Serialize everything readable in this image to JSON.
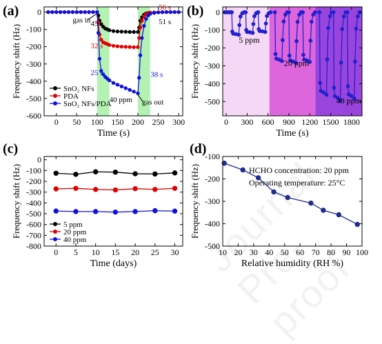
{
  "watermark": "Journal Pre-proof",
  "chart_data": [
    {
      "panel": "(a)",
      "type": "line",
      "xlabel": "Time (s)",
      "ylabel": "Frequency shift (Hz)",
      "xlim": [
        -30,
        310
      ],
      "ylim": [
        -600,
        30
      ],
      "xticks": [
        0,
        50,
        100,
        150,
        200,
        250,
        300
      ],
      "yticks": [
        0,
        -100,
        -200,
        -300,
        -400,
        -500,
        -600
      ],
      "shaded_intervals": [
        [
          100,
          130
        ],
        [
          200,
          230
        ]
      ],
      "shade_color": "#99ee99",
      "series": [
        {
          "name": "SnO₂ NFs",
          "color": "#000000",
          "x": [
            -20,
            -10,
            0,
            10,
            20,
            30,
            40,
            50,
            60,
            70,
            80,
            90,
            100,
            103,
            106,
            110,
            115,
            120,
            125,
            130,
            140,
            150,
            160,
            170,
            180,
            190,
            200,
            203,
            206,
            210,
            215,
            220,
            225,
            230,
            240,
            250,
            260,
            270,
            280,
            290,
            300
          ],
          "y": [
            0,
            0,
            0,
            0,
            0,
            0,
            0,
            0,
            0,
            0,
            0,
            0,
            0,
            -20,
            -50,
            -70,
            -85,
            -95,
            -100,
            -105,
            -110,
            -112,
            -113,
            -114,
            -115,
            -115,
            -115,
            -90,
            -50,
            -30,
            -15,
            -8,
            -5,
            -3,
            -2,
            -1,
            0,
            0,
            0,
            0,
            0
          ]
        },
        {
          "name": "PDA",
          "color": "#e00000",
          "x": [
            -20,
            -10,
            0,
            10,
            20,
            30,
            40,
            50,
            60,
            70,
            80,
            90,
            100,
            103,
            106,
            110,
            115,
            120,
            125,
            130,
            140,
            150,
            160,
            170,
            180,
            190,
            200,
            203,
            206,
            210,
            215,
            220,
            225,
            230,
            240,
            250,
            260,
            270,
            280,
            290,
            300
          ],
          "y": [
            0,
            0,
            0,
            0,
            0,
            0,
            0,
            0,
            0,
            0,
            0,
            0,
            0,
            -60,
            -130,
            -160,
            -175,
            -180,
            -185,
            -190,
            -195,
            -198,
            -200,
            -201,
            -202,
            -203,
            -203,
            -150,
            -90,
            -50,
            -25,
            -12,
            -6,
            -3,
            -2,
            -1,
            0,
            0,
            0,
            0,
            0
          ]
        },
        {
          "name": "SnO₂ NFs/PDA",
          "color": "#1010e0",
          "x": [
            -20,
            -10,
            0,
            10,
            20,
            30,
            40,
            50,
            60,
            70,
            80,
            90,
            100,
            103,
            106,
            110,
            115,
            120,
            125,
            130,
            140,
            150,
            160,
            170,
            180,
            190,
            200,
            203,
            206,
            210,
            215,
            220,
            225,
            230,
            240,
            250,
            260,
            270,
            280,
            290,
            300
          ],
          "y": [
            0,
            0,
            0,
            0,
            0,
            0,
            0,
            0,
            0,
            0,
            0,
            0,
            0,
            -120,
            -270,
            -340,
            -360,
            -375,
            -385,
            -395,
            -410,
            -420,
            -430,
            -440,
            -450,
            -460,
            -470,
            -380,
            -250,
            -150,
            -80,
            -40,
            -20,
            -10,
            -5,
            -2,
            -1,
            0,
            0,
            0,
            0
          ]
        }
      ],
      "legend": {
        "position": "bottom-left",
        "entries": [
          "SnO₂ NFs",
          "PDA",
          "SnO₂ NFs/PDA"
        ]
      },
      "annotations": [
        {
          "text": "gas in",
          "color": "#000000"
        },
        {
          "text": "40 ppm",
          "color": "#000000"
        },
        {
          "text": "gas out",
          "color": "#000000"
        },
        {
          "text": "45 s",
          "color": "#000000"
        },
        {
          "text": "32 s",
          "color": "#e00000"
        },
        {
          "text": "25 s",
          "color": "#1010e0"
        },
        {
          "text": "56 s",
          "color": "#e00000"
        },
        {
          "text": "51 s",
          "color": "#000000"
        },
        {
          "text": "38 s",
          "color": "#1010e0"
        }
      ]
    },
    {
      "panel": "(b)",
      "type": "line",
      "xlabel": "Time (s)",
      "ylabel": "Frequency shift (Hz)",
      "xlim": [
        -50,
        1950
      ],
      "ylim": [
        -580,
        30
      ],
      "xticks": [
        0,
        300,
        600,
        900,
        1200,
        1500,
        1800
      ],
      "yticks": [
        0,
        -100,
        -200,
        -300,
        -400,
        -500
      ],
      "regions": [
        {
          "label": "5 ppm",
          "x": [
            -50,
            620
          ],
          "color": "#f5d8f5"
        },
        {
          "label": "20 ppm",
          "x": [
            620,
            1280
          ],
          "color": "#dd66dd"
        },
        {
          "label": "40 ppm",
          "x": [
            1280,
            1950
          ],
          "color": "#9944dd"
        }
      ],
      "series_color": "#2222cc",
      "cycles": [
        {
          "start": 80,
          "depth": -120
        },
        {
          "start": 280,
          "depth": -110
        },
        {
          "start": 460,
          "depth": -105
        },
        {
          "start": 700,
          "depth": -260
        },
        {
          "start": 900,
          "depth": -270
        },
        {
          "start": 1100,
          "depth": -265
        },
        {
          "start": 1340,
          "depth": -440
        },
        {
          "start": 1540,
          "depth": -470
        },
        {
          "start": 1740,
          "depth": -460
        }
      ]
    },
    {
      "panel": "(c)",
      "type": "line",
      "xlabel": "Time (days)",
      "ylabel": "Frequency shift (Hz)",
      "xlim": [
        -3,
        32
      ],
      "ylim": [
        -800,
        30
      ],
      "xticks": [
        0,
        5,
        10,
        15,
        20,
        25,
        30
      ],
      "yticks": [
        0,
        -100,
        -200,
        -300,
        -400,
        -500,
        -600,
        -700,
        -800
      ],
      "x": [
        0,
        5,
        10,
        15,
        20,
        25,
        30
      ],
      "series": [
        {
          "name": "5 ppm",
          "color": "#000000",
          "values": [
            -125,
            -135,
            -112,
            -115,
            -130,
            -132,
            -122
          ]
        },
        {
          "name": "20 ppm",
          "color": "#e00000",
          "values": [
            -270,
            -265,
            -275,
            -280,
            -268,
            -275,
            -265
          ]
        },
        {
          "name": "40 ppm",
          "color": "#1010e0",
          "values": [
            -475,
            -480,
            -480,
            -485,
            -480,
            -472,
            -476
          ]
        }
      ],
      "legend": {
        "position": "bottom-left",
        "entries": [
          "5 ppm",
          "20 ppm",
          "40 ppm"
        ]
      }
    },
    {
      "panel": "(d)",
      "type": "line",
      "xlabel": "Relative humidity (RH %)",
      "ylabel": "Frequency shift (Hz)",
      "xlim": [
        10,
        100
      ],
      "ylim": [
        -500,
        -100
      ],
      "xticks": [
        10,
        20,
        30,
        40,
        50,
        60,
        70,
        80,
        90,
        100
      ],
      "yticks": [
        -100,
        -200,
        -300,
        -400,
        -500
      ],
      "series": [
        {
          "name": "",
          "color": "#1f2b8f",
          "x": [
            11,
            23,
            33,
            43,
            52,
            67,
            75,
            85,
            97
          ],
          "y": [
            -130,
            -160,
            -195,
            -258,
            -283,
            -308,
            -340,
            -360,
            -403
          ]
        }
      ],
      "annotations": [
        {
          "text": "HCHO concentration: 20 ppm"
        },
        {
          "text": "Operating temperature: 25°C"
        }
      ]
    }
  ]
}
